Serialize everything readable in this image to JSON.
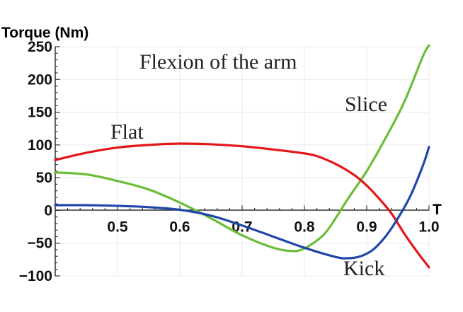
{
  "chart_data": {
    "type": "line",
    "title": "Flexion of the arm",
    "xlabel": "T",
    "ylabel": "Torque (Nm)",
    "xlim": [
      0.4,
      1.0
    ],
    "ylim": [
      -100,
      250
    ],
    "x_ticks": [
      0.5,
      0.6,
      0.7,
      0.8,
      0.9,
      1.0
    ],
    "x_tick_labels": [
      "0.5",
      "0.6",
      "0.7",
      "0.8",
      "0.9",
      "1.0"
    ],
    "y_ticks": [
      -100,
      -50,
      0,
      50,
      100,
      150,
      200,
      250
    ],
    "y_tick_labels": [
      "−100",
      "−50",
      "0",
      "50",
      "100",
      "150",
      "200",
      "250"
    ],
    "grid": true,
    "series": [
      {
        "name": "Flat",
        "color": "#e3161c",
        "x": [
          0.4,
          0.45,
          0.5,
          0.55,
          0.6,
          0.65,
          0.7,
          0.75,
          0.8,
          0.82,
          0.85,
          0.88,
          0.9,
          0.92,
          0.94,
          0.96,
          0.98,
          1.0
        ],
        "y": [
          77,
          88,
          96,
          100,
          102,
          101,
          98,
          93,
          87,
          83,
          71,
          54,
          38,
          18,
          -5,
          -35,
          -62,
          -87
        ]
      },
      {
        "name": "Slice",
        "color": "#6bbd3a",
        "x": [
          0.4,
          0.45,
          0.5,
          0.55,
          0.6,
          0.65,
          0.7,
          0.75,
          0.78,
          0.8,
          0.83,
          0.85,
          0.87,
          0.9,
          0.93,
          0.96,
          0.99,
          1.0
        ],
        "y": [
          58,
          55,
          45,
          32,
          12,
          -12,
          -38,
          -57,
          -62,
          -58,
          -38,
          -12,
          18,
          60,
          110,
          165,
          235,
          252
        ]
      },
      {
        "name": "Kick",
        "color": "#1f46a8",
        "x": [
          0.4,
          0.45,
          0.5,
          0.55,
          0.6,
          0.65,
          0.7,
          0.75,
          0.8,
          0.85,
          0.87,
          0.89,
          0.91,
          0.93,
          0.95,
          0.97,
          0.99,
          1.0
        ],
        "y": [
          8,
          8,
          7,
          5,
          1,
          -8,
          -23,
          -40,
          -57,
          -71,
          -73,
          -70,
          -60,
          -40,
          -12,
          22,
          68,
          97
        ]
      }
    ],
    "annotations": [
      {
        "text": "Flexion of the arm",
        "kind": "title"
      },
      {
        "text": "Slice",
        "series": "Slice"
      },
      {
        "text": "Flat",
        "series": "Flat"
      },
      {
        "text": "Kick",
        "series": "Kick"
      }
    ]
  }
}
